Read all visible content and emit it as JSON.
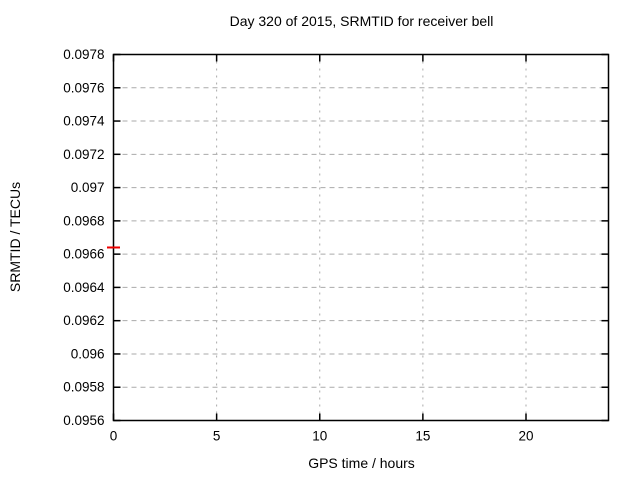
{
  "chart_data": {
    "type": "scatter",
    "title": "Day 320 of 2015, SRMTID for receiver bell",
    "xlabel": "GPS time / hours",
    "ylabel": "SRMTID / TECUs",
    "xlim": [
      0,
      24
    ],
    "ylim": [
      0.0956,
      0.0978
    ],
    "xticks": [
      0,
      5,
      10,
      15,
      20
    ],
    "xtick_labels": [
      "0",
      "5",
      "10",
      "15",
      "20"
    ],
    "yticks": [
      0.0956,
      0.0958,
      0.096,
      0.0962,
      0.0964,
      0.0966,
      0.0968,
      0.097,
      0.0972,
      0.0974,
      0.0976,
      0.0978
    ],
    "ytick_labels": [
      "0.0956",
      "0.0958",
      "0.096",
      "0.0962",
      "0.0964",
      "0.0966",
      "0.0968",
      "0.097",
      "0.0972",
      "0.0974",
      "0.0976",
      "0.0978"
    ],
    "grid": true,
    "legend": "none",
    "colors": {
      "background": "#ffffff",
      "axis": "#000000",
      "grid": "#aaaaaa",
      "text": "#000000",
      "series1": "#ee0000"
    },
    "series": [
      {
        "name": "SRMTID",
        "color": "#ee0000",
        "marker": "horizontal-dash",
        "points": [
          {
            "x": 0,
            "y": 0.09664
          }
        ]
      }
    ]
  }
}
